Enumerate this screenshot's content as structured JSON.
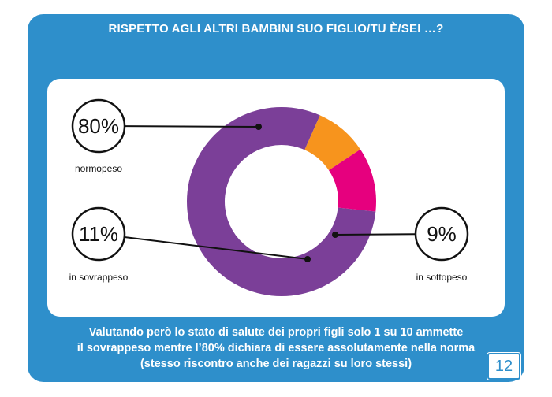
{
  "slide": {
    "title": "RISPETTO AGLI ALTRI BAMBINI SUO FIGLIO/TU È/SEI …?",
    "caption_lines": [
      "Valutando però  lo stato di salute dei propri figli solo 1 su 10 ammette",
      "il sovrappeso mentre l’80% dichiara di essere assolutamente nella norma",
      "(stesso riscontro anche dei ragazzi su loro  stessi)"
    ],
    "page_number": "12"
  },
  "colors": {
    "background_blue": "#2e8fcb",
    "normopeso": "#7b3f98",
    "sovrappeso": "#e6007e",
    "sottopeso": "#f7941d"
  },
  "chart_data": {
    "type": "pie",
    "donut": true,
    "title": "",
    "slices": [
      {
        "label": "normopeso",
        "display": "80%",
        "value": 80,
        "color": "#7b3f98"
      },
      {
        "label": "in sottopeso",
        "display": "9%",
        "value": 9,
        "color": "#f7941d"
      },
      {
        "label": "in sovrappeso",
        "display": "11%",
        "value": 11,
        "color": "#e6007e"
      }
    ]
  }
}
